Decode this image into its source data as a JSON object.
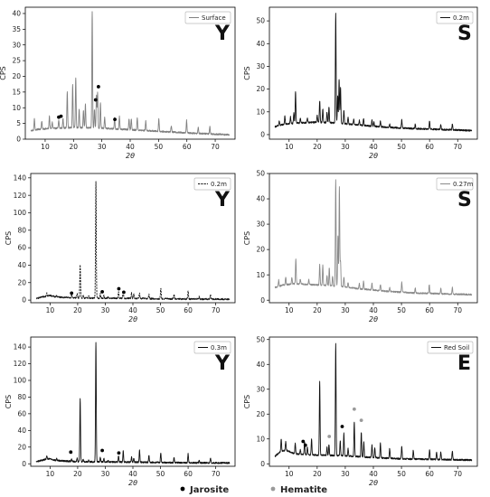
{
  "chart_data": [
    {
      "type": "line",
      "series_label": "Surface",
      "line_color": "#808080",
      "dashed": false,
      "panel_letter": "Y",
      "xlabel": "2θ",
      "ylabel": "CPS",
      "xlim": [
        3,
        77
      ],
      "ylim": [
        0,
        42
      ],
      "xticks": [
        10,
        20,
        30,
        40,
        50,
        60,
        70
      ],
      "yticks": [
        0,
        5,
        10,
        15,
        20,
        25,
        30,
        35,
        40
      ],
      "baseline": [
        [
          5,
          2.7
        ],
        [
          8,
          3.2
        ],
        [
          12,
          3.4
        ],
        [
          20,
          3.7
        ],
        [
          30,
          3.5
        ],
        [
          40,
          3.0
        ],
        [
          50,
          2.5
        ],
        [
          60,
          2.0
        ],
        [
          70,
          1.6
        ],
        [
          75,
          1.4
        ]
      ],
      "peaks": [
        [
          6.2,
          3.5
        ],
        [
          8.8,
          2.5
        ],
        [
          11.5,
          4.0
        ],
        [
          12.5,
          2.0
        ],
        [
          14.8,
          2.5
        ],
        [
          16.3,
          3.0
        ],
        [
          17.8,
          11.5
        ],
        [
          19.7,
          13.5
        ],
        [
          20.8,
          16.0
        ],
        [
          22.0,
          6.0
        ],
        [
          23.5,
          5.5
        ],
        [
          24.2,
          7.5
        ],
        [
          26.6,
          37.0
        ],
        [
          27.4,
          6.0
        ],
        [
          28.1,
          10.5
        ],
        [
          28.5,
          11.5
        ],
        [
          29.5,
          8.0
        ],
        [
          31.0,
          3.5
        ],
        [
          34.5,
          3.5
        ],
        [
          36.2,
          4.0
        ],
        [
          39.6,
          3.5
        ],
        [
          40.4,
          3.5
        ],
        [
          42.5,
          4.0
        ],
        [
          45.5,
          3.0
        ],
        [
          50.1,
          4.0
        ],
        [
          54.5,
          2.0
        ],
        [
          59.9,
          4.0
        ],
        [
          64.0,
          2.0
        ],
        [
          68.1,
          2.5
        ]
      ],
      "markers": [
        {
          "x": 14.8,
          "y": 7.0,
          "kind": "jarosite"
        },
        {
          "x": 15.6,
          "y": 7.3,
          "kind": "jarosite"
        },
        {
          "x": 27.8,
          "y": 12.5,
          "kind": "jarosite"
        },
        {
          "x": 28.8,
          "y": 16.7,
          "kind": "jarosite"
        },
        {
          "x": 34.6,
          "y": 6.3,
          "kind": "jarosite"
        }
      ]
    },
    {
      "type": "line",
      "series_label": "0.2m",
      "line_color": "#111111",
      "dashed": false,
      "panel_letter": "S",
      "xlabel": "2θ",
      "ylabel": "CPS",
      "xlim": [
        3,
        77
      ],
      "ylim": [
        -2,
        56
      ],
      "xticks": [
        10,
        20,
        30,
        40,
        50,
        60,
        70
      ],
      "yticks": [
        0,
        10,
        20,
        30,
        40,
        50
      ],
      "baseline": [
        [
          5,
          3.5
        ],
        [
          8,
          4.5
        ],
        [
          12,
          5.0
        ],
        [
          20,
          5.5
        ],
        [
          28,
          5.0
        ],
        [
          35,
          4.2
        ],
        [
          45,
          3.2
        ],
        [
          55,
          2.6
        ],
        [
          65,
          2.2
        ],
        [
          75,
          1.8
        ]
      ],
      "peaks": [
        [
          6.5,
          2.0
        ],
        [
          8.5,
          3.5
        ],
        [
          10.5,
          3.0
        ],
        [
          11.7,
          4.5
        ],
        [
          12.3,
          14.0
        ],
        [
          14.0,
          2.0
        ],
        [
          16.5,
          2.0
        ],
        [
          20.0,
          3.0
        ],
        [
          20.9,
          9.5
        ],
        [
          22.0,
          6.0
        ],
        [
          23.5,
          4.5
        ],
        [
          24.2,
          7.0
        ],
        [
          26.6,
          48.5
        ],
        [
          27.3,
          12.0
        ],
        [
          27.8,
          19.5
        ],
        [
          28.3,
          16.0
        ],
        [
          29.5,
          6.0
        ],
        [
          31.0,
          3.0
        ],
        [
          33.0,
          2.5
        ],
        [
          35.0,
          2.0
        ],
        [
          36.5,
          3.0
        ],
        [
          39.5,
          2.5
        ],
        [
          40.2,
          2.0
        ],
        [
          42.5,
          2.5
        ],
        [
          45.8,
          1.5
        ],
        [
          50.1,
          3.5
        ],
        [
          54.9,
          2.0
        ],
        [
          60.0,
          3.5
        ],
        [
          64.0,
          2.0
        ],
        [
          68.1,
          2.5
        ]
      ],
      "markers": []
    },
    {
      "type": "line",
      "series_label": "0.2m",
      "line_color": "#111111",
      "dashed": true,
      "panel_letter": "Y",
      "xlabel": "2θ",
      "ylabel": "CPS",
      "xlim": [
        3,
        77
      ],
      "ylim": [
        -3,
        145
      ],
      "xticks": [
        10,
        20,
        30,
        40,
        50,
        60,
        70
      ],
      "yticks": [
        0,
        20,
        40,
        60,
        80,
        100,
        120,
        140
      ],
      "baseline": [
        [
          5,
          2.0
        ],
        [
          8,
          4.0
        ],
        [
          10,
          5.5
        ],
        [
          12,
          3.5
        ],
        [
          20,
          2.5
        ],
        [
          30,
          2.2
        ],
        [
          40,
          2.0
        ],
        [
          50,
          1.5
        ],
        [
          60,
          1.2
        ],
        [
          75,
          1.0
        ]
      ],
      "peaks": [
        [
          8.8,
          4.0
        ],
        [
          12.3,
          2.0
        ],
        [
          17.8,
          3.0
        ],
        [
          19.8,
          5.0
        ],
        [
          20.9,
          38.0
        ],
        [
          22.0,
          3.0
        ],
        [
          24.0,
          2.5
        ],
        [
          26.6,
          133.0
        ],
        [
          28.2,
          5.0
        ],
        [
          29.5,
          3.0
        ],
        [
          31.0,
          2.0
        ],
        [
          34.8,
          7.0
        ],
        [
          36.5,
          8.0
        ],
        [
          39.5,
          6.0
        ],
        [
          40.3,
          5.0
        ],
        [
          42.4,
          6.0
        ],
        [
          45.8,
          5.0
        ],
        [
          50.1,
          12.0
        ],
        [
          54.9,
          5.0
        ],
        [
          60.0,
          9.0
        ],
        [
          64.0,
          3.0
        ],
        [
          68.1,
          5.0
        ]
      ],
      "markers": [
        {
          "x": 17.8,
          "y": 8.0,
          "kind": "jarosite"
        },
        {
          "x": 28.9,
          "y": 9.5,
          "kind": "jarosite"
        },
        {
          "x": 34.9,
          "y": 13.0,
          "kind": "jarosite"
        },
        {
          "x": 36.7,
          "y": 9.0,
          "kind": "jarosite"
        }
      ]
    },
    {
      "type": "line",
      "series_label": "0.27m",
      "line_color": "#8a8a8a",
      "dashed": false,
      "panel_letter": "S",
      "xlabel": "2θ",
      "ylabel": "CPS",
      "xlim": [
        3,
        77
      ],
      "ylim": [
        -1,
        50
      ],
      "xticks": [
        10,
        20,
        30,
        40,
        50,
        60,
        70
      ],
      "yticks": [
        0,
        10,
        20,
        30,
        40,
        50
      ],
      "baseline": [
        [
          5,
          5.0
        ],
        [
          8,
          6.0
        ],
        [
          12,
          6.5
        ],
        [
          20,
          6.0
        ],
        [
          28,
          5.5
        ],
        [
          35,
          4.5
        ],
        [
          45,
          3.5
        ],
        [
          55,
          2.8
        ],
        [
          65,
          2.5
        ],
        [
          75,
          2.2
        ]
      ],
      "peaks": [
        [
          6.3,
          2.5
        ],
        [
          8.8,
          3.0
        ],
        [
          11.0,
          2.5
        ],
        [
          12.4,
          10.0
        ],
        [
          14.0,
          2.0
        ],
        [
          17.0,
          2.0
        ],
        [
          20.9,
          8.0
        ],
        [
          22.0,
          8.0
        ],
        [
          23.5,
          4.0
        ],
        [
          24.3,
          7.0
        ],
        [
          25.5,
          4.0
        ],
        [
          26.6,
          42.0
        ],
        [
          27.4,
          20.0
        ],
        [
          27.9,
          39.0
        ],
        [
          28.3,
          10.0
        ],
        [
          29.5,
          4.0
        ],
        [
          31.0,
          2.0
        ],
        [
          35.0,
          2.0
        ],
        [
          36.5,
          3.0
        ],
        [
          39.5,
          2.5
        ],
        [
          42.5,
          2.5
        ],
        [
          45.8,
          1.5
        ],
        [
          50.1,
          4.0
        ],
        [
          54.9,
          2.0
        ],
        [
          59.9,
          3.5
        ],
        [
          64.0,
          2.0
        ],
        [
          68.1,
          2.5
        ]
      ],
      "markers": []
    },
    {
      "type": "line",
      "series_label": "0.3m",
      "line_color": "#111111",
      "dashed": false,
      "panel_letter": "Y",
      "xlabel": "2θ",
      "ylabel": "CPS",
      "xlim": [
        3,
        77
      ],
      "ylim": [
        -3,
        152
      ],
      "xticks": [
        10,
        20,
        30,
        40,
        50,
        60,
        70
      ],
      "yticks": [
        0,
        20,
        40,
        60,
        80,
        100,
        120,
        140
      ],
      "baseline": [
        [
          5,
          2.5
        ],
        [
          8,
          5.0
        ],
        [
          10,
          6.0
        ],
        [
          12,
          4.0
        ],
        [
          20,
          2.5
        ],
        [
          30,
          2.2
        ],
        [
          40,
          2.0
        ],
        [
          50,
          1.5
        ],
        [
          60,
          1.2
        ],
        [
          75,
          1.0
        ]
      ],
      "peaks": [
        [
          8.8,
          4.0
        ],
        [
          12.4,
          2.5
        ],
        [
          17.8,
          3.0
        ],
        [
          19.8,
          4.0
        ],
        [
          20.9,
          76.0
        ],
        [
          22.0,
          3.0
        ],
        [
          24.0,
          2.0
        ],
        [
          26.6,
          144.0
        ],
        [
          28.2,
          6.0
        ],
        [
          29.5,
          4.0
        ],
        [
          31.0,
          2.0
        ],
        [
          34.8,
          8.0
        ],
        [
          36.5,
          14.0
        ],
        [
          39.5,
          6.0
        ],
        [
          40.3,
          5.0
        ],
        [
          42.4,
          14.0
        ],
        [
          45.8,
          8.0
        ],
        [
          50.1,
          12.0
        ],
        [
          54.9,
          6.0
        ],
        [
          60.0,
          11.0
        ],
        [
          64.0,
          3.0
        ],
        [
          68.1,
          6.0
        ]
      ],
      "markers": [
        {
          "x": 17.5,
          "y": 14.0,
          "kind": "jarosite"
        },
        {
          "x": 28.9,
          "y": 16.0,
          "kind": "jarosite"
        },
        {
          "x": 34.9,
          "y": 13.0,
          "kind": "jarosite"
        }
      ]
    },
    {
      "type": "line",
      "series_label": "Red Soil",
      "line_color": "#111111",
      "dashed": false,
      "panel_letter": "E",
      "xlabel": "2θ",
      "ylabel": "CPS",
      "xlim": [
        3,
        77
      ],
      "ylim": [
        -1,
        51
      ],
      "xticks": [
        10,
        20,
        30,
        40,
        50,
        60,
        70
      ],
      "yticks": [
        0,
        10,
        20,
        30,
        40,
        50
      ],
      "baseline": [
        [
          5,
          3.0
        ],
        [
          7,
          5.0
        ],
        [
          9,
          5.5
        ],
        [
          12,
          4.0
        ],
        [
          20,
          3.5
        ],
        [
          30,
          3.2
        ],
        [
          40,
          2.5
        ],
        [
          50,
          2.0
        ],
        [
          60,
          1.8
        ],
        [
          75,
          1.5
        ]
      ],
      "peaks": [
        [
          7.2,
          5.0
        ],
        [
          8.8,
          3.5
        ],
        [
          12.2,
          4.5
        ],
        [
          14.0,
          2.0
        ],
        [
          15.5,
          5.0
        ],
        [
          16.5,
          3.0
        ],
        [
          18.0,
          6.5
        ],
        [
          20.9,
          29.5
        ],
        [
          23.5,
          3.5
        ],
        [
          24.2,
          4.5
        ],
        [
          26.6,
          45.0
        ],
        [
          28.2,
          6.0
        ],
        [
          29.5,
          9.0
        ],
        [
          31.0,
          3.0
        ],
        [
          33.2,
          14.0
        ],
        [
          35.7,
          10.0
        ],
        [
          36.6,
          6.0
        ],
        [
          39.5,
          5.0
        ],
        [
          40.5,
          4.0
        ],
        [
          42.5,
          6.0
        ],
        [
          45.8,
          4.0
        ],
        [
          50.1,
          5.0
        ],
        [
          54.2,
          3.5
        ],
        [
          60.0,
          4.0
        ],
        [
          62.5,
          3.0
        ],
        [
          64.0,
          3.0
        ],
        [
          68.1,
          3.5
        ]
      ],
      "markers": [
        {
          "x": 15.0,
          "y": 9.0,
          "kind": "jarosite"
        },
        {
          "x": 15.8,
          "y": 7.5,
          "kind": "jarosite"
        },
        {
          "x": 28.9,
          "y": 15.0,
          "kind": "jarosite"
        },
        {
          "x": 24.3,
          "y": 11.0,
          "kind": "hematite"
        },
        {
          "x": 33.2,
          "y": 22.0,
          "kind": "hematite"
        },
        {
          "x": 35.7,
          "y": 17.5,
          "kind": "hematite"
        }
      ]
    }
  ],
  "marker_legend": {
    "jarosite_label": "Jarosite",
    "hematite_label": "Hematite",
    "jarosite_color": "#000000",
    "hematite_color": "#9a9a9a"
  }
}
